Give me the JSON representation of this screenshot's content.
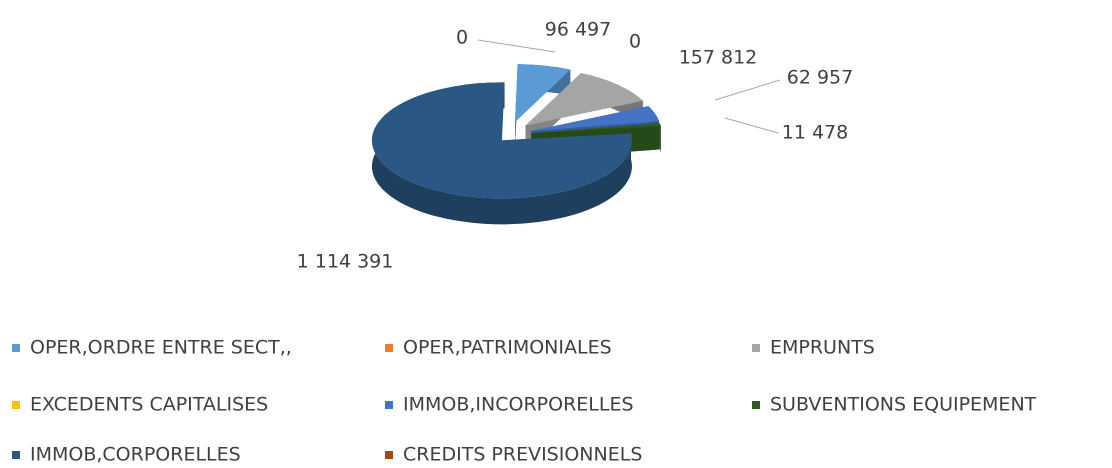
{
  "chart_data": {
    "type": "pie3d",
    "categories": [
      "OPER,ORDRE ENTRE SECT,,",
      "OPER,PATRIMONIALES",
      "EMPRUNTS",
      "EXCEDENTS CAPITALISES",
      "IMMOB,INCORPORELLES",
      "SUBVENTIONS EQUIPEMENT",
      "IMMOB,CORPORELLES",
      "CREDITS PREVISIONNELS"
    ],
    "values": [
      96497,
      0,
      157812,
      0,
      62957,
      11478,
      1114391,
      0
    ],
    "value_labels": [
      "96 497",
      "0",
      "157 812",
      "0",
      "62 957",
      "11 478",
      "1 114 391",
      null
    ],
    "colors": [
      "#5b9bd5",
      "#ed7d31",
      "#a5a5a5",
      "#ffc000",
      "#4472c4",
      "#2f5b1f",
      "#2a5783",
      "#9e480e"
    ],
    "legend": "bottom"
  }
}
